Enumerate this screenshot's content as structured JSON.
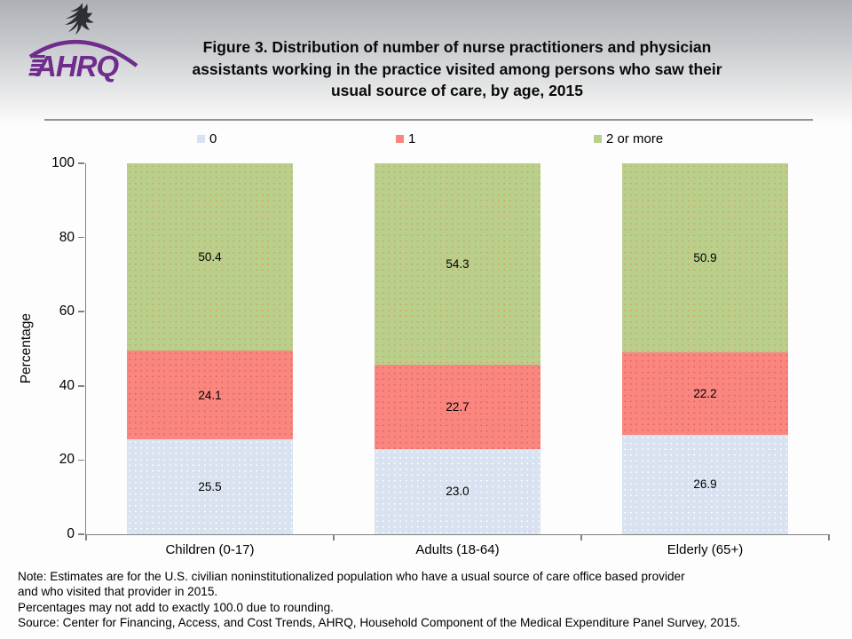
{
  "header": {
    "logo": {
      "org": "AHRQ",
      "eagle_icon": "hhs-eagle",
      "color": "#702C8C"
    },
    "title_lines": [
      "Figure 3. Distribution of number of nurse practitioners and physician",
      "assistants working in the practice visited among persons who saw their",
      "usual source of care, by age, 2015"
    ]
  },
  "chart_data": {
    "type": "bar",
    "stacked": true,
    "title": "Figure 3. Distribution of number of nurse practitioners and physician assistants working in the practice visited among persons who saw their usual source of care, by age, 2015",
    "categories": [
      "Children (0-17)",
      "Adults (18-64)",
      "Elderly (65+)"
    ],
    "series": [
      {
        "name": "0",
        "color": "#D8E2F0",
        "dot_color": "#FFFFFF",
        "values": [
          25.5,
          23.0,
          26.9
        ]
      },
      {
        "name": "1",
        "color": "#F9877F",
        "dot_color": "#E4625C",
        "values": [
          24.1,
          22.7,
          22.2
        ]
      },
      {
        "name": "2 or more",
        "color": "#B9CF8C",
        "dot_color": "#D3A463",
        "values": [
          50.4,
          54.3,
          50.9
        ]
      }
    ],
    "xlabel": "",
    "ylabel": "Percentage",
    "ylim": [
      0,
      100
    ],
    "yticks": [
      0,
      20,
      40,
      60,
      80,
      100
    ],
    "legend_position": "top",
    "grid": false,
    "value_labels": true
  },
  "footer": {
    "note_lines": [
      "Note: Estimates are for the U.S. civilian noninstitutionalized population who have a usual source of care office based provider",
      "and who visited that provider in 2015.",
      "Percentages may not add to exactly 100.0 due to rounding.",
      "Source: Center for Financing, Access, and Cost Trends, AHRQ, Household Component of the Medical Expenditure Panel Survey, 2015."
    ]
  }
}
